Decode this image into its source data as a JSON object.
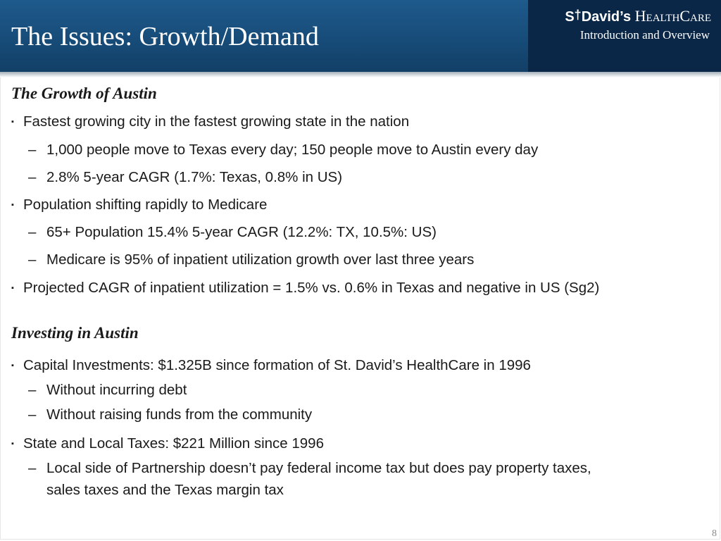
{
  "header": {
    "title": "The Issues: Growth/Demand",
    "logo": {
      "part1": "S",
      "cross": "†",
      "part2": "David’s ",
      "part3": "HealthCare"
    },
    "section": "Introduction and Overview"
  },
  "sections": [
    {
      "heading": "The Growth of Austin",
      "items": [
        {
          "level": 1,
          "text": "Fastest growing city in the fastest growing state in the nation"
        },
        {
          "level": 2,
          "text": "1,000 people move to Texas every day; 150 people move to Austin every day"
        },
        {
          "level": 2,
          "text": "2.8% 5-year CAGR  (1.7%: Texas, 0.8% in US)"
        },
        {
          "level": 1,
          "text": "Population shifting rapidly to Medicare"
        },
        {
          "level": 2,
          "text": "65+ Population 15.4% 5-year CAGR  (12.2%: TX, 10.5%: US)"
        },
        {
          "level": 2,
          "text": "Medicare is 95% of inpatient utilization growth over last three years"
        },
        {
          "level": 1,
          "text": "Projected CAGR of inpatient utilization = 1.5% vs. 0.6% in Texas and negative in US (Sg2)"
        }
      ]
    },
    {
      "heading": "Investing in Austin",
      "items": [
        {
          "level": 1,
          "text": "Capital Investments: $1.325B since formation of St. David’s HealthCare in 1996"
        },
        {
          "level": 2,
          "text": "Without incurring debt"
        },
        {
          "level": 2,
          "text": "Without raising funds from the community"
        },
        {
          "level": 1,
          "text": "State and Local Taxes: $221 Million since 1996"
        },
        {
          "level": 2,
          "text": "Local side of Partnership doesn’t pay federal income tax but does pay property taxes,"
        },
        {
          "level": 3,
          "text": "sales taxes and the Texas margin tax"
        }
      ]
    }
  ],
  "marks": {
    "bullet": "▪",
    "dash": "–"
  },
  "page_number": "8",
  "colors": {
    "header": "#174c79",
    "brand_box": "#0b2747",
    "text": "#1a1a1a"
  }
}
